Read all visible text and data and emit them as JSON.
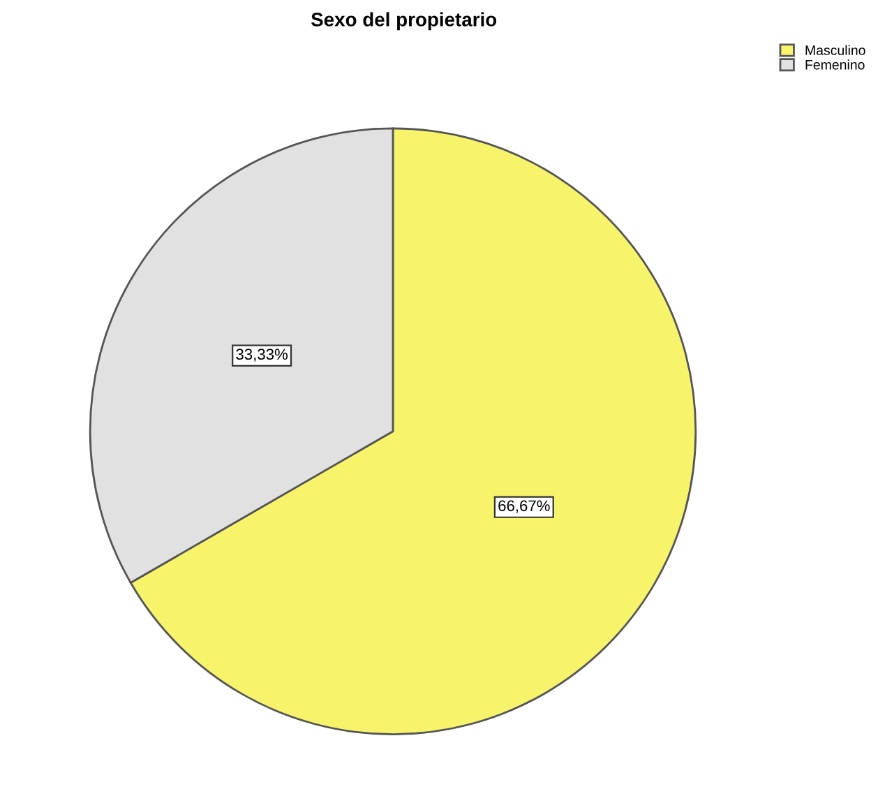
{
  "chart_data": {
    "type": "pie",
    "title": "Sexo del propietario",
    "categories": [
      "Masculino",
      "Femenino"
    ],
    "values": [
      66.67,
      33.33
    ],
    "colors": [
      "#f7f46c",
      "#e1e1e1"
    ],
    "value_labels": [
      "66,67%",
      "33,33%"
    ],
    "legend": "top right"
  }
}
